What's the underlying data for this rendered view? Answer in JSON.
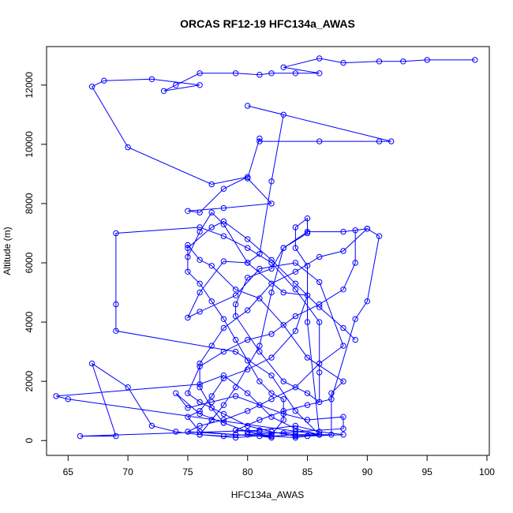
{
  "chart_data": {
    "type": "scatter",
    "title": "ORCAS RF12-19 HFC134a_AWAS",
    "xlabel": "HFC134a_AWAS",
    "ylabel": "Altitude (m)",
    "xlim": [
      63.2,
      100.2
    ],
    "ylim": [
      -500,
      13300
    ],
    "x_ticks": [
      65,
      70,
      75,
      80,
      85,
      90,
      95,
      100
    ],
    "y_ticks": [
      0,
      2000,
      4000,
      6000,
      8000,
      10000,
      12000
    ],
    "grid": false,
    "legend": "none",
    "colors": {
      "series": "#0000ff",
      "axes": "#000000",
      "background": "#ffffff"
    },
    "series": [
      {
        "style": "line+points",
        "points": [
          [
            99,
            12850
          ],
          [
            95,
            12850
          ],
          [
            93,
            12800
          ],
          [
            91,
            12800
          ],
          [
            88,
            12750
          ],
          [
            86,
            12900
          ],
          [
            83,
            12600
          ],
          [
            86,
            12400
          ],
          [
            84,
            12400
          ],
          [
            82,
            12400
          ],
          [
            81,
            12350
          ],
          [
            79,
            12400
          ],
          [
            76,
            12400
          ],
          [
            74,
            12000
          ],
          [
            73,
            11800
          ],
          [
            76,
            12000
          ],
          [
            72,
            12200
          ],
          [
            68,
            12150
          ],
          [
            67,
            11950
          ],
          [
            70,
            9900
          ],
          [
            77,
            8650
          ],
          [
            80,
            8900
          ],
          [
            78,
            8500
          ],
          [
            76,
            7700
          ],
          [
            75,
            7750
          ],
          [
            78,
            7850
          ],
          [
            82,
            8000
          ],
          [
            80,
            8850
          ],
          [
            81,
            10200
          ],
          [
            81,
            10100
          ],
          [
            86,
            10100
          ],
          [
            91,
            10100
          ],
          [
            92,
            10100
          ],
          [
            80,
            11300
          ],
          [
            83,
            11000
          ],
          [
            82,
            8750
          ],
          [
            81,
            6300
          ],
          [
            80,
            6000
          ],
          [
            78,
            6050
          ],
          [
            76,
            5000
          ],
          [
            75,
            4150
          ],
          [
            76,
            4350
          ],
          [
            79,
            4900
          ],
          [
            81,
            5800
          ],
          [
            84,
            6000
          ],
          [
            86,
            5350
          ],
          [
            88,
            3200
          ],
          [
            86,
            2600
          ],
          [
            84,
            1800
          ],
          [
            82,
            1400
          ],
          [
            80,
            1000
          ],
          [
            78,
            700
          ],
          [
            76,
            500
          ],
          [
            75,
            300
          ],
          [
            79,
            200
          ],
          [
            82,
            150
          ],
          [
            84,
            200
          ],
          [
            87,
            200
          ],
          [
            87,
            1600
          ],
          [
            88,
            2000
          ],
          [
            85,
            2800
          ],
          [
            83,
            3900
          ],
          [
            81,
            4800
          ],
          [
            79,
            5100
          ],
          [
            77,
            5900
          ],
          [
            76,
            6100
          ],
          [
            75,
            6600
          ],
          [
            75,
            6200
          ],
          [
            76,
            7050
          ],
          [
            77,
            7700
          ],
          [
            78,
            7300
          ],
          [
            80,
            6000
          ],
          [
            83,
            5000
          ],
          [
            85,
            4900
          ],
          [
            84,
            3700
          ],
          [
            82,
            2800
          ],
          [
            80,
            2400
          ],
          [
            78,
            2100
          ],
          [
            77,
            1500
          ],
          [
            76,
            1000
          ],
          [
            75,
            800
          ],
          [
            76,
            300
          ],
          [
            79,
            200
          ],
          [
            81,
            150
          ],
          [
            82,
            100
          ],
          [
            80,
            300
          ],
          [
            78,
            600
          ],
          [
            76,
            900
          ],
          [
            74,
            1600
          ],
          [
            75,
            1100
          ],
          [
            77,
            1300
          ],
          [
            79,
            1500
          ],
          [
            81,
            1200
          ],
          [
            83,
            900
          ],
          [
            85,
            700
          ],
          [
            88,
            800
          ],
          [
            88,
            400
          ],
          [
            84,
            300
          ],
          [
            80,
            200
          ],
          [
            78,
            150
          ],
          [
            76,
            200
          ],
          [
            74,
            300
          ],
          [
            72,
            500
          ],
          [
            70,
            1800
          ],
          [
            67,
            2600
          ],
          [
            69,
            150
          ],
          [
            66,
            150
          ],
          [
            81,
            350
          ],
          [
            84,
            500
          ],
          [
            86,
            300
          ],
          [
            88,
            200
          ],
          [
            85,
            150
          ],
          [
            83,
            250
          ],
          [
            81,
            300
          ],
          [
            79,
            350
          ],
          [
            81,
            700
          ],
          [
            83,
            1000
          ],
          [
            85,
            1200
          ],
          [
            87,
            1400
          ],
          [
            89,
            4100
          ],
          [
            90,
            4700
          ],
          [
            91,
            6900
          ],
          [
            90,
            7150
          ],
          [
            88,
            7050
          ],
          [
            85,
            7050
          ],
          [
            83,
            6500
          ],
          [
            82,
            5800
          ],
          [
            80,
            5500
          ],
          [
            79,
            4600
          ],
          [
            79,
            4200
          ],
          [
            81,
            3000
          ],
          [
            83,
            2000
          ],
          [
            85,
            1600
          ],
          [
            86,
            1300
          ],
          [
            86,
            2300
          ],
          [
            86,
            4000
          ],
          [
            84,
            5100
          ],
          [
            82,
            6000
          ],
          [
            80,
            6500
          ],
          [
            78,
            6900
          ],
          [
            76,
            7200
          ],
          [
            69,
            7000
          ],
          [
            69,
            4600
          ],
          [
            69,
            3700
          ],
          [
            79,
            3000
          ],
          [
            82,
            2200
          ],
          [
            84,
            1000
          ],
          [
            86,
            200
          ],
          [
            84,
            150
          ],
          [
            82,
            300
          ],
          [
            80,
            500
          ],
          [
            78,
            900
          ],
          [
            76,
            1300
          ],
          [
            75,
            1600
          ],
          [
            76,
            2500
          ],
          [
            78,
            3000
          ],
          [
            80,
            3400
          ],
          [
            82,
            3600
          ],
          [
            84,
            4200
          ],
          [
            86,
            4600
          ],
          [
            88,
            5100
          ],
          [
            89,
            6000
          ],
          [
            89,
            7100
          ],
          [
            90,
            7150
          ],
          [
            88,
            6400
          ],
          [
            86,
            6200
          ],
          [
            84,
            5700
          ],
          [
            82,
            5300
          ],
          [
            80,
            4400
          ],
          [
            78,
            3800
          ],
          [
            77,
            3200
          ],
          [
            76,
            2600
          ],
          [
            76,
            1800
          ],
          [
            77,
            1100
          ],
          [
            78,
            600
          ],
          [
            80,
            300
          ],
          [
            82,
            150
          ],
          [
            84,
            100
          ],
          [
            86,
            200
          ],
          [
            65,
            1400
          ],
          [
            64,
            1500
          ],
          [
            76,
            1900
          ],
          [
            78,
            2200
          ],
          [
            80,
            1600
          ],
          [
            82,
            800
          ],
          [
            84,
            400
          ],
          [
            86,
            200
          ],
          [
            85,
            4000
          ],
          [
            85,
            5900
          ],
          [
            84,
            6500
          ],
          [
            84,
            7200
          ],
          [
            85,
            7500
          ],
          [
            85,
            7000
          ],
          [
            83,
            6500
          ],
          [
            82,
            5000
          ],
          [
            81,
            3200
          ],
          [
            79,
            1800
          ],
          [
            78,
            1200
          ],
          [
            77,
            700
          ],
          [
            76,
            200
          ],
          [
            79,
            100
          ],
          [
            82,
            200
          ],
          [
            83,
            700
          ],
          [
            83,
            1400
          ],
          [
            82,
            1600
          ],
          [
            81,
            2000
          ],
          [
            80,
            2700
          ],
          [
            79,
            3400
          ],
          [
            78,
            4100
          ],
          [
            77,
            4700
          ],
          [
            76,
            5300
          ],
          [
            75,
            5700
          ],
          [
            75,
            6500
          ],
          [
            77,
            7200
          ],
          [
            78,
            7400
          ],
          [
            80,
            6800
          ],
          [
            82,
            6100
          ],
          [
            84,
            5300
          ],
          [
            86,
            4500
          ],
          [
            88,
            3800
          ],
          [
            89,
            3400
          ]
        ]
      }
    ]
  }
}
